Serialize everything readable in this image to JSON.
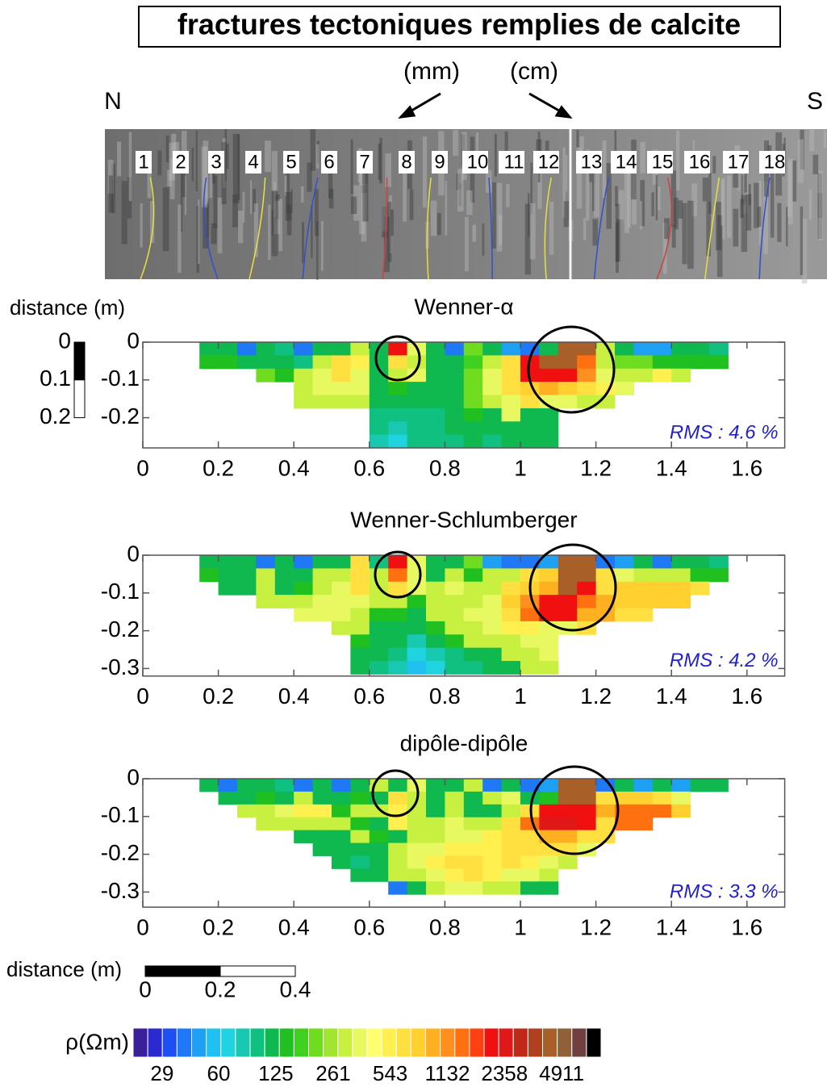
{
  "title": "fractures tectoniques remplies de calcite",
  "photo": {
    "north": "N",
    "south": "S",
    "mm": "(mm)",
    "cm": "(cm)",
    "electrodes": [
      "1",
      "2",
      "3",
      "4",
      "5",
      "6",
      "7",
      "8",
      "9",
      "10",
      "11",
      "12",
      "13",
      "14",
      "15",
      "16",
      "17",
      "18"
    ]
  },
  "depth_scale": {
    "label": "distance (m)",
    "ticks": [
      0,
      0.1,
      0.2
    ]
  },
  "panels": [
    {
      "title": "Wenner-α",
      "rms": "RMS : 4.6 %",
      "xlim": [
        0,
        1.7
      ],
      "ylim": [
        -0.28,
        0
      ],
      "xticks": [
        0,
        0.2,
        0.4,
        0.6,
        0.8,
        1,
        1.2,
        1.4,
        1.6
      ],
      "yticks": [
        0,
        -0.1,
        -0.2
      ],
      "x_start": 0.15,
      "cell_width": 0.05,
      "cell_height": 0.035,
      "cells": [
        [
          130,
          120,
          40,
          120,
          100,
          40,
          110,
          130,
          300,
          110,
          2000,
          400,
          110,
          40,
          200,
          120,
          50,
          40,
          110,
          4000,
          4000,
          300,
          130,
          50,
          50,
          130,
          120,
          90
        ],
        [
          150,
          150,
          130,
          110,
          120,
          90,
          300,
          600,
          500,
          130,
          700,
          300,
          130,
          130,
          180,
          300,
          600,
          2000,
          4000,
          4000,
          1500,
          300,
          200,
          200,
          150,
          150,
          150,
          150
        ],
        [
          null,
          null,
          null,
          200,
          150,
          300,
          400,
          600,
          400,
          130,
          300,
          400,
          130,
          130,
          200,
          400,
          700,
          2000,
          2000,
          2000,
          1200,
          400,
          300,
          300,
          500,
          300,
          null,
          null
        ],
        [
          null,
          null,
          null,
          null,
          null,
          300,
          400,
          400,
          400,
          130,
          150,
          130,
          130,
          120,
          200,
          400,
          600,
          800,
          1000,
          800,
          600,
          500,
          400,
          null,
          null,
          null,
          null,
          null
        ],
        [
          null,
          null,
          null,
          null,
          null,
          300,
          300,
          300,
          300,
          130,
          120,
          110,
          110,
          110,
          200,
          300,
          400,
          600,
          400,
          400,
          300,
          300,
          null,
          null,
          null,
          null,
          null,
          null
        ],
        [
          null,
          null,
          null,
          null,
          null,
          null,
          null,
          null,
          null,
          100,
          90,
          100,
          90,
          110,
          140,
          130,
          400,
          110,
          120,
          null,
          null,
          null,
          null,
          null,
          null,
          null,
          null,
          null
        ],
        [
          null,
          null,
          null,
          null,
          null,
          null,
          null,
          null,
          null,
          90,
          80,
          100,
          100,
          110,
          120,
          110,
          130,
          120,
          130,
          null,
          null,
          null,
          null,
          null,
          null,
          null,
          null,
          null
        ],
        [
          null,
          null,
          null,
          null,
          null,
          null,
          null,
          null,
          null,
          80,
          70,
          90,
          90,
          100,
          110,
          100,
          120,
          110,
          120,
          null,
          null,
          null,
          null,
          null,
          null,
          null,
          null,
          null
        ]
      ]
    },
    {
      "title": "Wenner-Schlumberger",
      "rms": "RMS : 4.2 %",
      "xlim": [
        0,
        1.7
      ],
      "ylim": [
        -0.32,
        0
      ],
      "xticks": [
        0,
        0.2,
        0.4,
        0.6,
        0.8,
        1,
        1.2,
        1.4,
        1.6
      ],
      "yticks": [
        0,
        -0.1,
        -0.2,
        -0.3
      ],
      "x_start": 0.15,
      "cell_width": 0.05,
      "cell_height": 0.035,
      "cells": [
        [
          130,
          120,
          110,
          40,
          130,
          40,
          110,
          130,
          700,
          100,
          2000,
          400,
          110,
          110,
          200,
          50,
          40,
          40,
          50,
          4000,
          4000,
          40,
          50,
          130,
          40,
          110,
          130,
          90
        ],
        [
          150,
          120,
          120,
          300,
          130,
          130,
          300,
          300,
          600,
          300,
          1500,
          400,
          130,
          300,
          150,
          300,
          300,
          600,
          800,
          4000,
          4000,
          700,
          400,
          300,
          300,
          300,
          150,
          150
        ],
        [
          null,
          130,
          120,
          300,
          130,
          150,
          300,
          400,
          700,
          300,
          600,
          400,
          300,
          400,
          300,
          300,
          600,
          800,
          1000,
          4000,
          2000,
          700,
          800,
          800,
          800,
          800,
          700,
          null
        ],
        [
          null,
          null,
          null,
          300,
          300,
          300,
          400,
          400,
          400,
          300,
          300,
          150,
          300,
          300,
          300,
          400,
          800,
          1200,
          2000,
          2000,
          1500,
          1000,
          800,
          800,
          800,
          800,
          null,
          null
        ],
        [
          null,
          null,
          null,
          null,
          null,
          400,
          400,
          400,
          300,
          150,
          150,
          120,
          300,
          300,
          400,
          400,
          700,
          1500,
          2000,
          2000,
          1000,
          1000,
          700,
          700,
          null,
          null,
          null,
          null
        ],
        [
          null,
          null,
          null,
          null,
          null,
          null,
          null,
          300,
          300,
          130,
          120,
          110,
          150,
          300,
          300,
          400,
          500,
          500,
          400,
          400,
          600,
          null,
          null,
          null,
          null,
          null,
          null,
          null
        ],
        [
          null,
          null,
          null,
          null,
          null,
          null,
          null,
          null,
          150,
          130,
          110,
          80,
          120,
          150,
          300,
          300,
          300,
          400,
          400,
          null,
          null,
          null,
          null,
          null,
          null,
          null,
          null,
          null
        ],
        [
          null,
          null,
          null,
          null,
          null,
          null,
          null,
          null,
          130,
          110,
          90,
          70,
          80,
          100,
          120,
          130,
          300,
          300,
          400,
          null,
          null,
          null,
          null,
          null,
          null,
          null,
          null,
          null
        ],
        [
          null,
          null,
          null,
          null,
          null,
          null,
          null,
          null,
          120,
          100,
          80,
          60,
          70,
          90,
          100,
          120,
          130,
          300,
          300,
          null,
          null,
          null,
          null,
          null,
          null,
          null,
          null,
          null
        ]
      ]
    },
    {
      "title": "dipôle-dipôle",
      "rms": "RMS : 3.3 %",
      "xlim": [
        0,
        1.7
      ],
      "ylim": [
        -0.34,
        0
      ],
      "xticks": [
        0,
        0.2,
        0.4,
        0.6,
        0.8,
        1,
        1.2,
        1.4,
        1.6
      ],
      "yticks": [
        0,
        -0.1,
        -0.2,
        -0.3
      ],
      "x_start": 0.15,
      "cell_width": 0.05,
      "cell_height": 0.034,
      "cells": [
        [
          130,
          40,
          110,
          130,
          100,
          40,
          130,
          40,
          130,
          300,
          130,
          400,
          130,
          130,
          300,
          40,
          130,
          40,
          50,
          4000,
          4000,
          40,
          130,
          50,
          130,
          50,
          130,
          130
        ],
        [
          null,
          130,
          120,
          150,
          130,
          300,
          130,
          130,
          150,
          130,
          600,
          300,
          130,
          300,
          130,
          300,
          400,
          130,
          150,
          4000,
          4000,
          700,
          800,
          800,
          700,
          400,
          null,
          null
        ],
        [
          null,
          null,
          300,
          300,
          400,
          500,
          500,
          150,
          300,
          300,
          500,
          300,
          130,
          300,
          130,
          130,
          300,
          600,
          2000,
          2000,
          2000,
          1000,
          1500,
          1500,
          1500,
          800,
          null,
          null
        ],
        [
          null,
          null,
          null,
          300,
          300,
          300,
          300,
          300,
          150,
          120,
          500,
          300,
          300,
          400,
          300,
          300,
          600,
          1500,
          2500,
          2500,
          2000,
          700,
          1500,
          1500,
          null,
          null,
          null,
          null
        ],
        [
          null,
          null,
          null,
          null,
          null,
          130,
          130,
          120,
          300,
          150,
          120,
          300,
          300,
          400,
          400,
          500,
          600,
          700,
          1000,
          1000,
          700,
          600,
          null,
          null,
          null,
          null,
          null,
          null
        ],
        [
          null,
          null,
          null,
          null,
          null,
          null,
          120,
          110,
          120,
          130,
          300,
          400,
          400,
          500,
          500,
          500,
          600,
          600,
          700,
          600,
          400,
          null,
          null,
          null,
          null,
          null,
          null,
          null
        ],
        [
          null,
          null,
          null,
          null,
          null,
          null,
          null,
          110,
          100,
          120,
          300,
          400,
          500,
          600,
          600,
          500,
          600,
          500,
          400,
          300,
          null,
          null,
          null,
          null,
          null,
          null,
          null,
          null
        ],
        [
          null,
          null,
          null,
          null,
          null,
          null,
          null,
          null,
          120,
          110,
          300,
          300,
          400,
          500,
          600,
          500,
          400,
          400,
          300,
          null,
          null,
          null,
          null,
          null,
          null,
          null,
          null,
          null
        ],
        [
          null,
          null,
          null,
          null,
          null,
          null,
          null,
          null,
          null,
          null,
          40,
          130,
          300,
          400,
          400,
          300,
          300,
          130,
          130,
          null,
          null,
          null,
          null,
          null,
          null,
          null,
          null,
          null
        ]
      ]
    }
  ],
  "distance_scale": {
    "label": "distance (m)",
    "ticks": [
      0,
      0.2,
      0.4
    ]
  },
  "colorbar": {
    "label": "ρ(Ωm)",
    "lim": [
      20,
      8150
    ],
    "ticks": [
      29,
      60,
      125,
      261,
      543,
      1132,
      2358,
      4911
    ],
    "colors": [
      "#3a1f9a",
      "#2a2ad0",
      "#1e4ff0",
      "#1f78f5",
      "#1ea0f5",
      "#20c0f0",
      "#1fd4e0",
      "#19c8b0",
      "#10c080",
      "#10b850",
      "#20c020",
      "#40d020",
      "#70dc20",
      "#a0e630",
      "#c8f040",
      "#e8f860",
      "#ffff70",
      "#fff050",
      "#ffe040",
      "#ffd030",
      "#ffb020",
      "#ff9020",
      "#ff7010",
      "#ff4010",
      "#f01010",
      "#e01818",
      "#c02818",
      "#b04020",
      "#a86028",
      "#906038",
      "#704040",
      "#000000"
    ]
  }
}
